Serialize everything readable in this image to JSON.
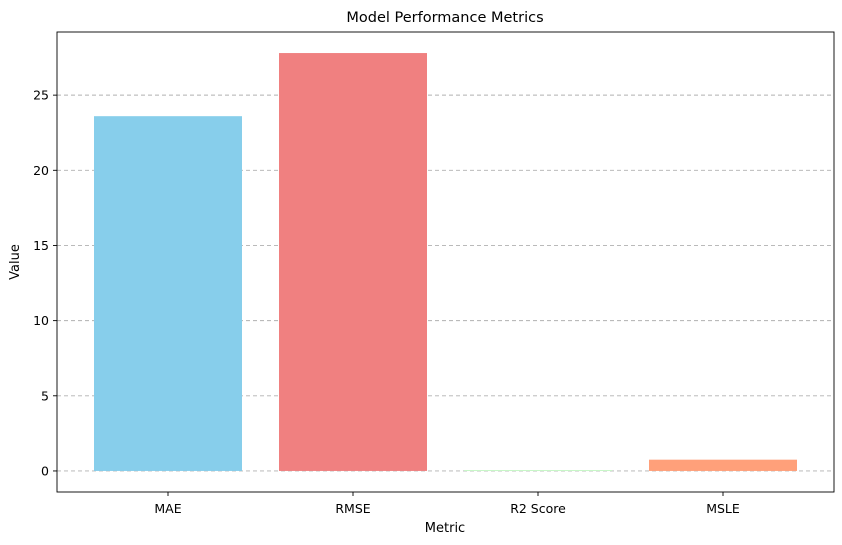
{
  "chart_data": {
    "type": "bar",
    "title": "Model Performance Metrics",
    "xlabel": "Metric",
    "ylabel": "Value",
    "categories": [
      "MAE",
      "RMSE",
      "R2 Score",
      "MSLE"
    ],
    "values": [
      23.6,
      27.8,
      0.03,
      0.75
    ],
    "colors": [
      "#87ceeb",
      "#f08080",
      "#90ee90",
      "#ffa07a"
    ],
    "ylim": [
      -1.4,
      29.2
    ],
    "yticks": [
      0,
      5,
      10,
      15,
      20,
      25
    ],
    "grid": "y-dashed"
  }
}
